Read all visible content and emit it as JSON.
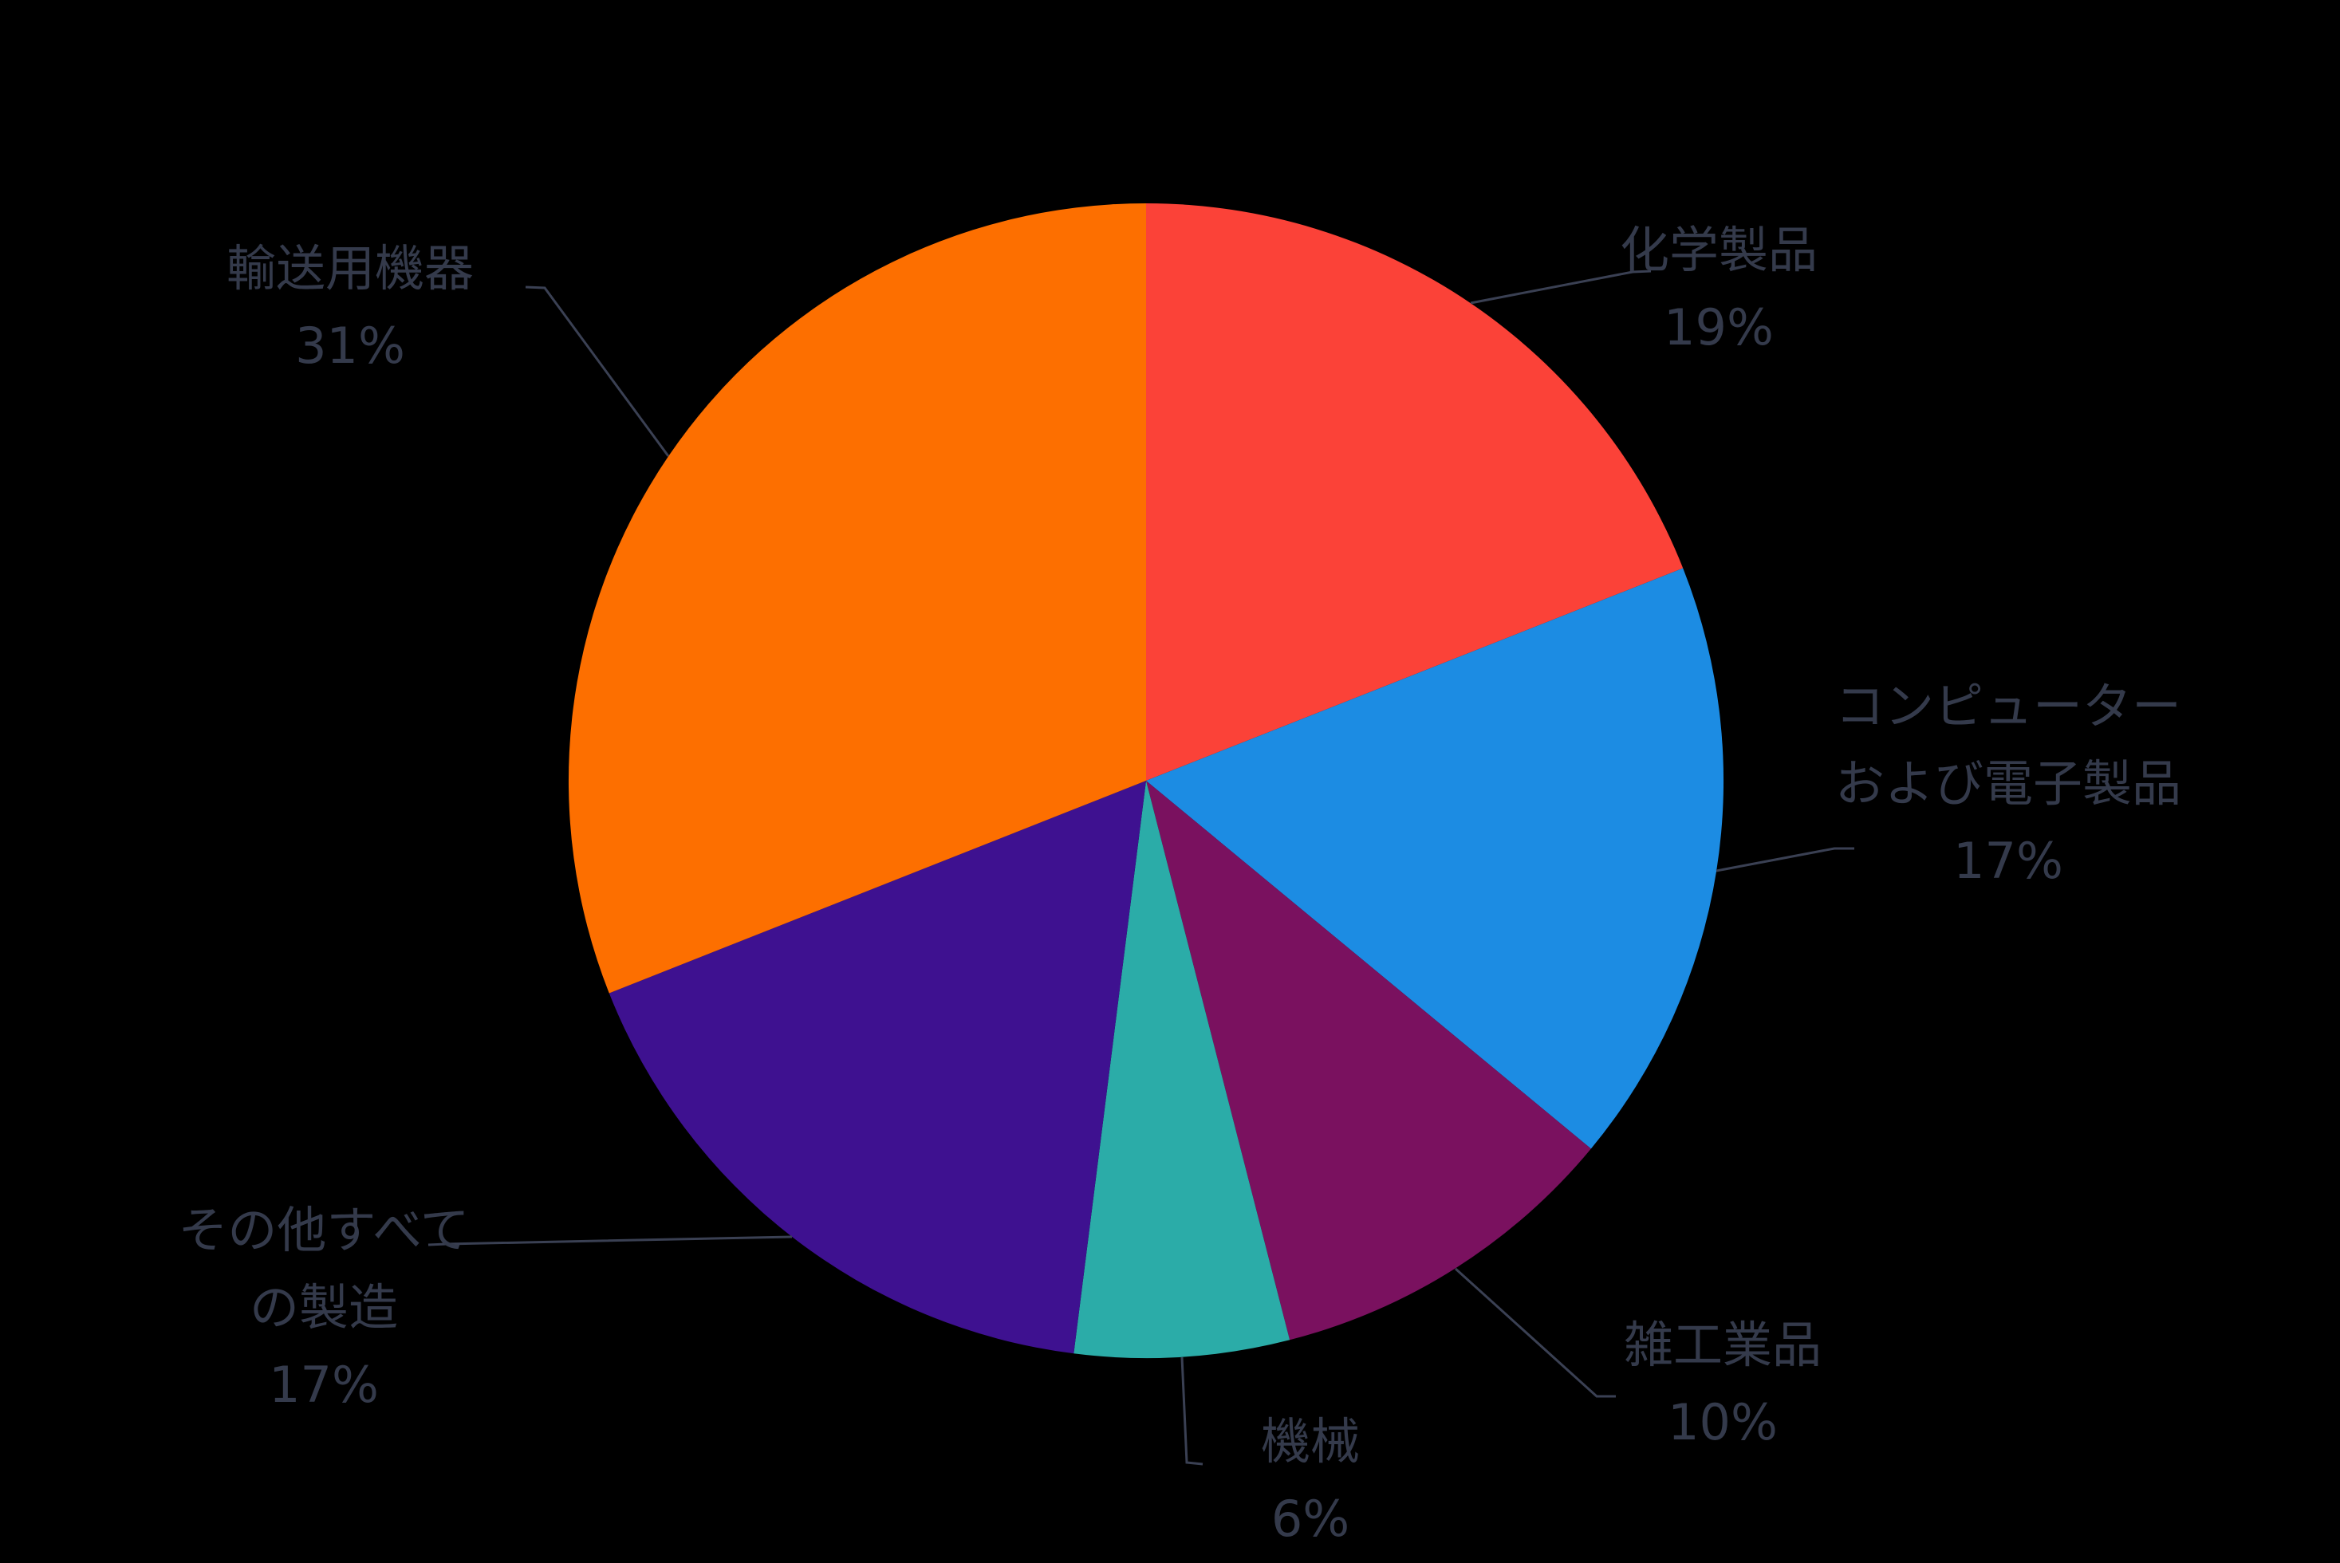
{
  "chart_data": {
    "type": "pie",
    "title": "",
    "legend": "none",
    "background": "#000000",
    "label_text_color": "#343A4B",
    "leader_line_color": "#3A4053",
    "start_angle_deg": 0,
    "direction": "clockwise",
    "slices": [
      {
        "label": "化学製品",
        "label_lines": [
          "化学製品"
        ],
        "pct_label": "19%",
        "value": 19,
        "color": "#FB4238"
      },
      {
        "label": "コンピューターおよび電子製品",
        "label_lines": [
          "コンピューター",
          "および電子製品"
        ],
        "pct_label": "17%",
        "value": 17,
        "color": "#1C8CE3"
      },
      {
        "label": "雑工業品",
        "label_lines": [
          "雑工業品"
        ],
        "pct_label": "10%",
        "value": 10,
        "color": "#7A115F"
      },
      {
        "label": "機械",
        "label_lines": [
          "機械"
        ],
        "pct_label": "6%",
        "value": 6,
        "color": "#2BACA8"
      },
      {
        "label": "その他すべての製造",
        "label_lines": [
          "その他すべて",
          "の製造"
        ],
        "pct_label": "17%",
        "value": 17,
        "color": "#3E1190"
      },
      {
        "label": "輸送用機器",
        "label_lines": [
          "輸送用機器"
        ],
        "pct_label": "31%",
        "value": 31,
        "color": "#FD6F00"
      }
    ]
  }
}
